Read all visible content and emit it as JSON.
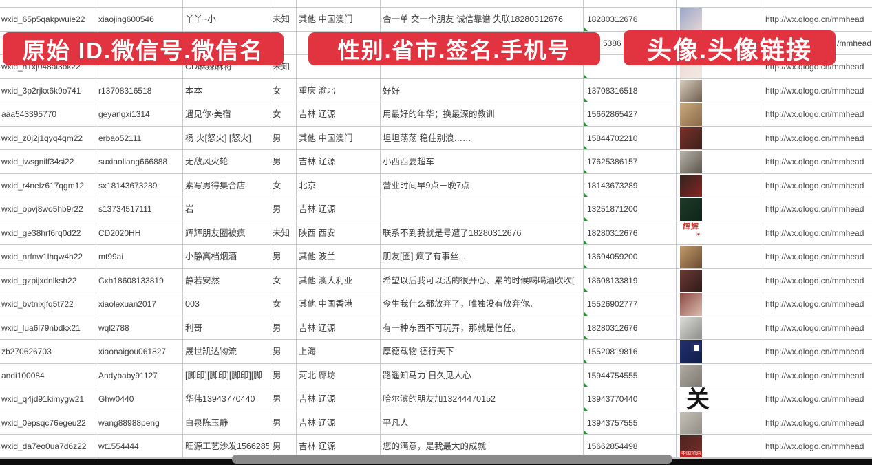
{
  "banners": [
    {
      "label": "原始 ID.微信号.微信名"
    },
    {
      "label": "性别.省市.签名.手机号"
    },
    {
      "label": "头像.头像链接"
    }
  ],
  "colors": {
    "banner_red": "#e23440",
    "grid_line": "#c6cacd",
    "text": "#3d3d3d",
    "marker_green": "#2e8b3a",
    "scrollbar_track": "#0d0d0d",
    "scrollbar_thumb": "#8a8a8a"
  },
  "hidden_row": {
    "phone_fragment": "5386",
    "link_fragment": "/mmhead"
  },
  "rows": [
    {
      "wxid": "wxid_65p5qakpwuie22",
      "account": "xiaojing600546",
      "name": "丫丫~小",
      "gender": "未知",
      "region": "其他 中国澳门",
      "signature": "合一单 交一个朋友 诚信靠谱 失联18280312676",
      "phone": "18280312676",
      "link": "http://wx.qlogo.cn/mmhead",
      "marker": true,
      "avatar": {
        "kind": "photo",
        "desc": "girl-selfie",
        "c1": "#9aa7c8",
        "c2": "#e6d6d6"
      }
    },
    {
      "wxid": "",
      "account": "",
      "name": "",
      "gender": "",
      "region": "",
      "signature": "",
      "phone": "5386",
      "link": "/mmhead",
      "hidden": true,
      "marker": false,
      "avatar": {
        "kind": "hidden"
      }
    },
    {
      "wxid": "wxid_h1xj048al3ok22",
      "account": "",
      "name": "CD麻辣麻将",
      "gender": "未知",
      "region": "",
      "signature": "",
      "phone": "",
      "link": "http://wx.qlogo.cn/mmhead",
      "marker": true,
      "avatar": {
        "kind": "photo",
        "desc": "light-pink-portrait",
        "c1": "#ecd8d4",
        "c2": "#f4e9e4"
      }
    },
    {
      "wxid": "wxid_3p2rjkx6k9o741",
      "account": "r13708316518",
      "name": "本本",
      "gender": "女",
      "region": "重庆 渝北",
      "signature": "好好",
      "phone": "13708316518",
      "link": "http://wx.qlogo.cn/mmhead",
      "marker": true,
      "avatar": {
        "kind": "photo",
        "desc": "woman-white-dress",
        "c1": "#d8cdbd",
        "c2": "#6d5c4b"
      }
    },
    {
      "wxid": "aaa543395770",
      "account": "geyangxi1314",
      "name": "遇见你·美宿",
      "gender": "女",
      "region": "吉林 辽源",
      "signature": "用最好的年华；换最深的教训",
      "phone": "15662865427",
      "link": "http://wx.qlogo.cn/mmhead",
      "marker": true,
      "avatar": {
        "kind": "photo",
        "desc": "tan-figure",
        "c1": "#c9a97c",
        "c2": "#8a6a48"
      }
    },
    {
      "wxid": "wxid_z0j2j1qyq4qm22",
      "account": "erbao52111",
      "name": "杨 火[怒火] [怒火]",
      "gender": "男",
      "region": "其他 中国澳门",
      "signature": "坦坦荡荡 稳住别浪……",
      "phone": "15844702210",
      "link": "http://wx.qlogo.cn/mmhead",
      "marker": true,
      "avatar": {
        "kind": "photo",
        "desc": "dark-red-figures",
        "c1": "#7c302a",
        "c2": "#3a201c"
      }
    },
    {
      "wxid": "wxid_iwsgnilf34si22",
      "account": "suxiaoliang666888",
      "name": "无敌风火轮",
      "gender": "男",
      "region": "吉林 辽源",
      "signature": "小西西要超车",
      "phone": "17625386157",
      "link": "http://wx.qlogo.cn/mmhead",
      "marker": true,
      "avatar": {
        "kind": "photo",
        "desc": "person-in-car",
        "c1": "#b9b5ad",
        "c2": "#5b5349"
      }
    },
    {
      "wxid": "wxid_r4nelz617qgm12",
      "account": "sx18143673289",
      "name": "素写男得集合店",
      "gender": "女",
      "region": "北京",
      "signature": "营业时间早9点－晚7点",
      "phone": "18143673289",
      "link": "http://wx.qlogo.cn/mmhead",
      "marker": true,
      "avatar": {
        "kind": "photo",
        "desc": "dark-storefront-red-sign",
        "c1": "#2e2420",
        "c2": "#8a2420"
      }
    },
    {
      "wxid": "wxid_opvj8wo5hb9r22",
      "account": "s13734517111",
      "name": "岩",
      "gender": "男",
      "region": "吉林 辽源",
      "signature": "",
      "phone": "13251871200",
      "link": "http://wx.qlogo.cn/mmhead",
      "marker": true,
      "avatar": {
        "kind": "photo",
        "desc": "dark-green-poster",
        "c1": "#1e3a28",
        "c2": "#0f241a"
      }
    },
    {
      "wxid": "wxid_ge38hrf6rq0d22",
      "account": "CD2020HH",
      "name": "辉辉朋友圈被疯",
      "gender": "未知",
      "region": "陕西 西安",
      "signature": "联系不到我就是号遭了18280312676",
      "phone": "18280312676",
      "link": "http://wx.qlogo.cn/mmhead",
      "marker": true,
      "avatar": {
        "kind": "hui",
        "text1": "辉辉",
        "text2": "I♥"
      }
    },
    {
      "wxid": "wxid_nrfnw1lhqw4h22",
      "account": "mt99ai",
      "name": "小静高档烟酒",
      "gender": "男",
      "region": "其他 波兰",
      "signature": "朋友[圈] 疯了有事丝,..",
      "phone": "13694059200",
      "link": "http://wx.qlogo.cn/mmhead",
      "marker": true,
      "avatar": {
        "kind": "photo",
        "desc": "girl-sunglasses",
        "c1": "#c29c6c",
        "c2": "#6b4b31"
      }
    },
    {
      "wxid": "wxid_gzpijxdnlksh22",
      "account": "Cxh18608133819",
      "name": "静若安然",
      "gender": "女",
      "region": "其他 澳大利亚",
      "signature": "希望以后我可以活的很开心、累的时候喝喝酒吹吹[",
      "phone": "18608133819",
      "link": "http://wx.qlogo.cn/mmhead",
      "marker": true,
      "avatar": {
        "kind": "photo",
        "desc": "dark-hair-selfie",
        "c1": "#6b3b35",
        "c2": "#2e1a18"
      }
    },
    {
      "wxid": "wxid_bvtnixjfq5t722",
      "account": "xiaolexuan2017",
      "name": "003",
      "gender": "女",
      "region": "其他 中国香港",
      "signature": "今生我什么都放弃了，唯独没有放弃你。",
      "phone": "15526902777",
      "link": "http://wx.qlogo.cn/mmhead",
      "marker": true,
      "avatar": {
        "kind": "photo",
        "desc": "girl-selfie-warm",
        "c1": "#8a4a42",
        "c2": "#dcbcb0"
      }
    },
    {
      "wxid": "wxid_lua6l79nbdkx21",
      "account": "wql2788",
      "name": "利哥",
      "gender": "男",
      "region": "吉林 辽源",
      "signature": "有一种东西不可玩弄，那就是信任。",
      "phone": "18280312676",
      "link": "http://wx.qlogo.cn/mmhead",
      "marker": true,
      "avatar": {
        "kind": "photo",
        "desc": "white-cap-person",
        "c1": "#dcdcd8",
        "c2": "#8b8b87"
      }
    },
    {
      "wxid": "zb270626703",
      "account": "xiaonaigou061827",
      "name": "晟世凯达物流",
      "gender": "男",
      "region": "上海",
      "signature": "厚德载物 德行天下",
      "phone": "15520819816",
      "link": "http://wx.qlogo.cn/mmhead",
      "marker": true,
      "avatar": {
        "kind": "qr",
        "desc": "blue-qr-code",
        "c1": "#22306e",
        "c2": "#101c4a"
      }
    },
    {
      "wxid": "andi100084",
      "account": "Andybaby91127",
      "name": "[脚印][脚印][脚印][脚",
      "gender": "男",
      "region": "河北 廊坊",
      "signature": "路遥知马力 日久见人心",
      "phone": "15944754555",
      "link": "http://wx.qlogo.cn/mmhead",
      "marker": true,
      "avatar": {
        "kind": "photo",
        "desc": "gray-street-photo",
        "c1": "#b1ada5",
        "c2": "#7b776f"
      }
    },
    {
      "wxid": "wxid_q4jd91kimygw21",
      "account": "Ghw0440",
      "name": "华伟13943770440",
      "gender": "男",
      "region": "吉林 辽源",
      "signature": "哈尔滨的朋友加13244470152",
      "phone": "13943770440",
      "link": "http://wx.qlogo.cn/mmhead",
      "marker": true,
      "avatar": {
        "kind": "guan",
        "text": "关"
      }
    },
    {
      "wxid": "wxid_0epsqc76egeu22",
      "account": "wang88988peng",
      "name": "白泉陈玉静",
      "gender": "男",
      "region": "吉林 辽源",
      "signature": "平凡人",
      "phone": "13943757555",
      "link": "http://wx.qlogo.cn/mmhead",
      "marker": true,
      "avatar": {
        "kind": "photo",
        "desc": "light-gray-person",
        "c1": "#c6c2ba",
        "c2": "#908c84"
      }
    },
    {
      "wxid": "wxid_da7eo0ua7d6z22",
      "account": "wt1554444",
      "name": "旺源工艺沙发15662854",
      "gender": "男",
      "region": "吉林 辽源",
      "signature": "您的满意，是我最大的成就",
      "phone": "15662854498",
      "link": "http://wx.qlogo.cn/mmhead",
      "marker": true,
      "avatar": {
        "kind": "strip",
        "desc": "dark-photo-red-strip",
        "c1": "#4a2420",
        "c2": "#7a2e28",
        "strip_text": "中国加油"
      }
    }
  ],
  "partial_row": {
    "avatar": {
      "kind": "photo",
      "desc": "blue-portrait",
      "c1": "#7fa8d6",
      "c2": "#cfe0f0"
    }
  }
}
